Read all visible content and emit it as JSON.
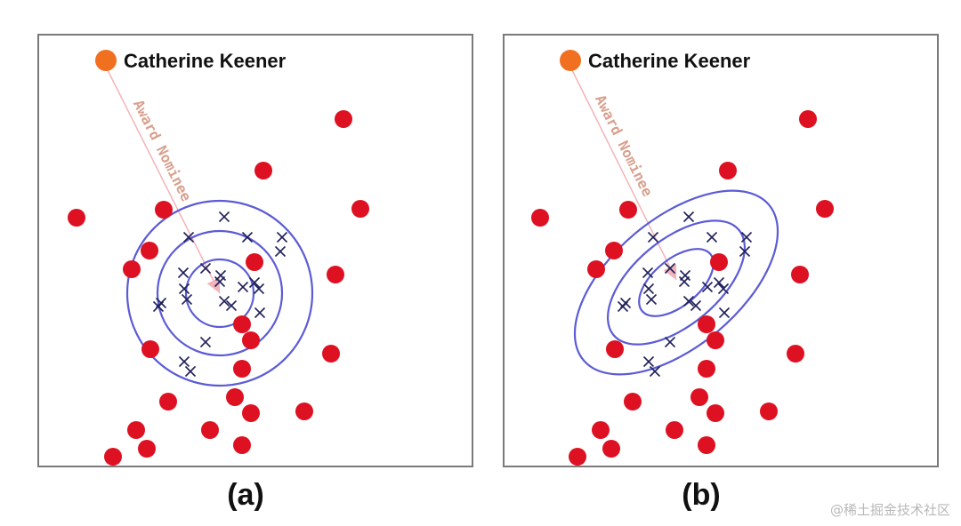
{
  "panels": [
    {
      "id": "a",
      "caption": "(a)",
      "entity_label": "Catherine Keener",
      "relation_label": "Award Nominee",
      "entity_color": "#f07020",
      "red_color": "#dd1122",
      "cross_color": "#20205a",
      "contour_color": "#5b5bd6",
      "arrow_color": "#f2b4ba",
      "contour_shape": "circular",
      "red_points": [
        [
          127,
          514
        ],
        [
          153,
          484
        ],
        [
          165,
          505
        ],
        [
          189,
          452
        ],
        [
          236,
          484
        ],
        [
          264,
          447
        ],
        [
          282,
          465
        ],
        [
          272,
          501
        ],
        [
          342,
          463
        ],
        [
          86,
          245
        ],
        [
          184,
          236
        ],
        [
          168,
          282
        ],
        [
          148,
          303
        ],
        [
          169,
          393
        ],
        [
          296,
          192
        ],
        [
          386,
          134
        ],
        [
          405,
          235
        ],
        [
          377,
          309
        ],
        [
          372,
          398
        ],
        [
          286,
          295
        ],
        [
          272,
          365
        ],
        [
          282,
          383
        ],
        [
          272,
          415
        ]
      ],
      "crosses": [
        [
          252,
          244
        ],
        [
          212,
          267
        ],
        [
          278,
          267
        ],
        [
          317,
          267
        ],
        [
          315,
          283
        ],
        [
          206,
          307
        ],
        [
          231,
          302
        ],
        [
          248,
          310
        ],
        [
          207,
          325
        ],
        [
          181,
          341
        ],
        [
          178,
          345
        ],
        [
          210,
          337
        ],
        [
          252,
          339
        ],
        [
          260,
          344
        ],
        [
          247,
          317
        ],
        [
          273,
          323
        ],
        [
          286,
          318
        ],
        [
          291,
          325
        ],
        [
          292,
          352
        ],
        [
          231,
          385
        ],
        [
          207,
          407
        ],
        [
          214,
          418
        ]
      ],
      "arrow": [
        [
          121,
          79
        ],
        [
          247,
          330
        ]
      ]
    },
    {
      "id": "b",
      "caption": "(b)",
      "entity_label": "Catherine Keener",
      "relation_label": "Award Nominee",
      "entity_color": "#f07020",
      "red_color": "#dd1122",
      "cross_color": "#20205a",
      "contour_color": "#5b5bd6",
      "arrow_color": "#f2b4ba",
      "contour_shape": "elliptical",
      "red_points": [
        [
          649,
          514
        ],
        [
          675,
          484
        ],
        [
          687,
          505
        ],
        [
          711,
          452
        ],
        [
          758,
          484
        ],
        [
          786,
          447
        ],
        [
          804,
          465
        ],
        [
          794,
          501
        ],
        [
          864,
          463
        ],
        [
          607,
          245
        ],
        [
          706,
          236
        ],
        [
          690,
          282
        ],
        [
          670,
          303
        ],
        [
          691,
          393
        ],
        [
          818,
          192
        ],
        [
          908,
          134
        ],
        [
          927,
          235
        ],
        [
          899,
          309
        ],
        [
          894,
          398
        ],
        [
          808,
          295
        ],
        [
          794,
          365
        ],
        [
          804,
          383
        ],
        [
          794,
          415
        ]
      ],
      "crosses": [
        [
          774,
          244
        ],
        [
          734,
          267
        ],
        [
          800,
          267
        ],
        [
          839,
          267
        ],
        [
          837,
          283
        ],
        [
          728,
          307
        ],
        [
          753,
          302
        ],
        [
          770,
          310
        ],
        [
          729,
          325
        ],
        [
          703,
          341
        ],
        [
          700,
          345
        ],
        [
          732,
          337
        ],
        [
          774,
          339
        ],
        [
          782,
          344
        ],
        [
          769,
          317
        ],
        [
          795,
          323
        ],
        [
          808,
          318
        ],
        [
          813,
          325
        ],
        [
          814,
          352
        ],
        [
          753,
          385
        ],
        [
          729,
          407
        ],
        [
          736,
          418
        ]
      ],
      "arrow": [
        [
          643,
          79
        ],
        [
          760,
          315
        ]
      ]
    }
  ],
  "watermark": "@稀土掘金技术社区"
}
